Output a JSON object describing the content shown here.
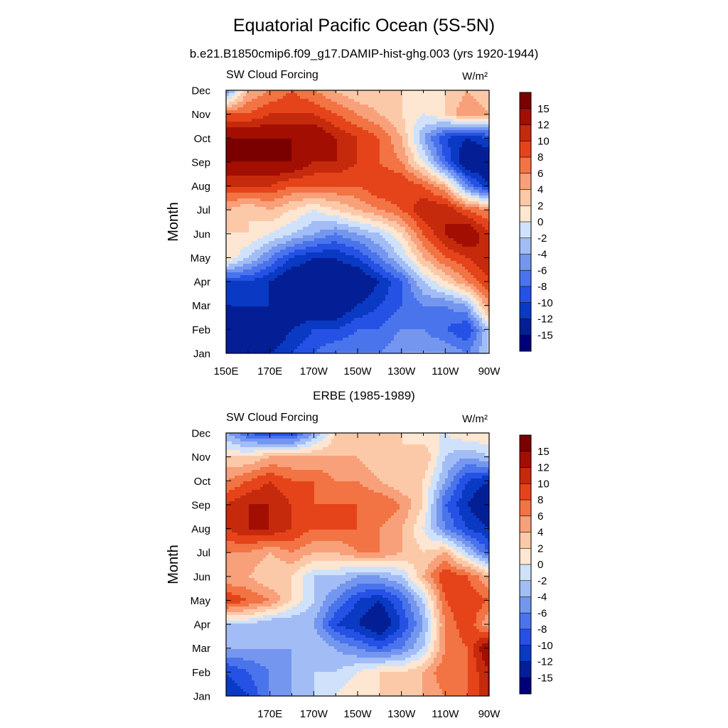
{
  "figure": {
    "title": "Equatorial Pacific Ocean (5S-5N)",
    "subtitle": "b.e21.B1850cmip6.f09_g17.DAMIP-hist-ghg.003 (yrs 1920-1944)",
    "second_title": "ERBE (1985-1989)"
  },
  "colorbar": {
    "levels": [
      -15,
      -12,
      -10,
      -8,
      -6,
      -4,
      -2,
      0,
      2,
      4,
      6,
      8,
      10,
      12,
      15
    ],
    "colors": [
      "#00007a",
      "#041f95",
      "#0a3ac3",
      "#2551e4",
      "#4a74ec",
      "#7496ef",
      "#a2bdf5",
      "#d0e2fb",
      "#fde6d2",
      "#fcc9a8",
      "#f8a07a",
      "#f27343",
      "#e5441b",
      "#c62a0c",
      "#a20e02",
      "#7a0000"
    ]
  },
  "chart_data": [
    {
      "type": "heatmap",
      "variable": "SW Cloud Forcing",
      "units": "W/m²",
      "ylabel": "Month",
      "xticks": [
        "150E",
        "170E",
        "170W",
        "150W",
        "130W",
        "110W",
        "90W"
      ],
      "xlim_deg_east": [
        150,
        270
      ],
      "yticks": [
        "Jan",
        "Feb",
        "Mar",
        "Apr",
        "May",
        "Jun",
        "Jul",
        "Aug",
        "Sep",
        "Oct",
        "Nov",
        "Dec"
      ],
      "x_deg_east": [
        150,
        160,
        170,
        180,
        190,
        200,
        210,
        220,
        230,
        240,
        250,
        260,
        270
      ],
      "values": [
        [
          -15,
          -15,
          -12,
          -10,
          -8,
          -6,
          -6,
          -6,
          -4,
          -4,
          -4,
          -6,
          -2
        ],
        [
          -15,
          -15,
          -15,
          -12,
          -10,
          -10,
          -8,
          -8,
          -6,
          -6,
          -8,
          -10,
          -2
        ],
        [
          -12,
          -12,
          -12,
          -15,
          -15,
          -15,
          -12,
          -10,
          -8,
          -6,
          -6,
          -4,
          6
        ],
        [
          -10,
          -10,
          -12,
          -15,
          -15,
          -15,
          -15,
          -12,
          -8,
          -2,
          2,
          6,
          10
        ],
        [
          2,
          -2,
          -6,
          -10,
          -12,
          -12,
          -10,
          -6,
          -2,
          4,
          8,
          10,
          12
        ],
        [
          2,
          2,
          0,
          -2,
          -4,
          -6,
          -4,
          -2,
          2,
          8,
          12,
          15,
          10
        ],
        [
          4,
          2,
          4,
          2,
          0,
          2,
          4,
          6,
          8,
          12,
          12,
          8,
          6
        ],
        [
          10,
          10,
          10,
          8,
          8,
          8,
          8,
          10,
          10,
          8,
          4,
          -6,
          -12
        ],
        [
          15,
          15,
          15,
          15,
          12,
          12,
          10,
          8,
          6,
          0,
          -8,
          -15,
          -15
        ],
        [
          15,
          15,
          15,
          15,
          15,
          12,
          10,
          8,
          4,
          -4,
          -10,
          -12,
          -10
        ],
        [
          8,
          8,
          10,
          10,
          10,
          8,
          6,
          4,
          2,
          0,
          2,
          6,
          4
        ],
        [
          -6,
          4,
          6,
          8,
          6,
          4,
          2,
          2,
          2,
          0,
          2,
          4,
          2
        ]
      ]
    },
    {
      "type": "heatmap",
      "variable": "SW Cloud Forcing",
      "units": "W/m²",
      "ylabel": "Month",
      "xticks": [
        "170E",
        "170W",
        "150W",
        "130W",
        "110W",
        "90W"
      ],
      "xlim_deg_east": [
        150,
        270
      ],
      "yticks": [
        "Jan",
        "Feb",
        "Mar",
        "Apr",
        "May",
        "Jun",
        "Jul",
        "Aug",
        "Sep",
        "Oct",
        "Nov",
        "Dec"
      ],
      "x_deg_east": [
        150,
        160,
        170,
        180,
        190,
        200,
        210,
        220,
        230,
        240,
        250,
        260,
        270
      ],
      "values": [
        [
          -12,
          -10,
          -6,
          -4,
          -2,
          0,
          2,
          2,
          2,
          4,
          6,
          8,
          12
        ],
        [
          -10,
          -8,
          -6,
          -4,
          -2,
          -2,
          0,
          2,
          2,
          4,
          8,
          8,
          12
        ],
        [
          -4,
          -4,
          -4,
          -4,
          -2,
          -4,
          -6,
          -8,
          -6,
          -2,
          6,
          8,
          15
        ],
        [
          -2,
          -2,
          -4,
          -4,
          -4,
          -10,
          -12,
          -15,
          -10,
          -4,
          6,
          10,
          4
        ],
        [
          10,
          8,
          6,
          2,
          -2,
          -6,
          -10,
          -12,
          -8,
          -2,
          8,
          10,
          8
        ],
        [
          4,
          4,
          2,
          2,
          -2,
          -2,
          -4,
          -4,
          -2,
          4,
          10,
          8,
          4
        ],
        [
          6,
          6,
          4,
          6,
          4,
          4,
          6,
          6,
          4,
          2,
          4,
          -2,
          -8
        ],
        [
          10,
          12,
          12,
          10,
          8,
          8,
          8,
          6,
          4,
          0,
          -6,
          -10,
          -12
        ],
        [
          10,
          12,
          12,
          10,
          8,
          8,
          8,
          8,
          6,
          2,
          -8,
          -12,
          -15
        ],
        [
          6,
          8,
          10,
          8,
          8,
          6,
          6,
          4,
          2,
          2,
          -4,
          -10,
          -12
        ],
        [
          2,
          2,
          4,
          4,
          4,
          4,
          4,
          2,
          2,
          4,
          -2,
          -4,
          -2
        ],
        [
          -4,
          -8,
          -10,
          -10,
          -4,
          2,
          2,
          2,
          2,
          0,
          0,
          2,
          2
        ]
      ]
    }
  ]
}
